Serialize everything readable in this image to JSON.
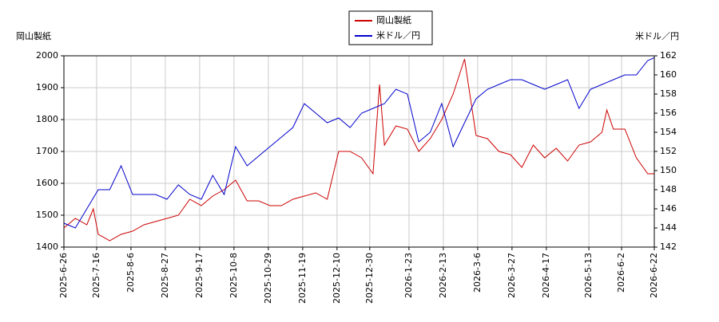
{
  "chart_data": {
    "type": "line",
    "ylabel": "岡山製紙",
    "y2label": "米ドル／円",
    "xlim": [
      "2025-6-26",
      "2026-6-22"
    ],
    "xticks": [
      "2025-6-26",
      "2025-7-16",
      "2025-8-6",
      "2025-8-27",
      "2025-9-17",
      "2025-10-8",
      "2025-10-29",
      "2025-11-19",
      "2025-12-10",
      "2025-12-30",
      "2026-1-23",
      "2026-2-13",
      "2026-3-6",
      "2026-3-27",
      "2026-4-17",
      "2026-5-13",
      "2026-6-2",
      "2026-6-22"
    ],
    "ylim": [
      1400,
      2000
    ],
    "yticks": [
      1400,
      1500,
      1600,
      1700,
      1800,
      1900,
      2000
    ],
    "y2lim": [
      142,
      162
    ],
    "y2ticks": [
      142,
      144,
      146,
      148,
      150,
      152,
      154,
      156,
      158,
      160,
      162
    ],
    "grid": true,
    "legend": "top",
    "series": [
      {
        "name": "岡山製紙",
        "color": "#cc0000",
        "x": [
          "2025-6-26",
          "2025-7-3",
          "2025-7-10",
          "2025-7-14",
          "2025-7-17",
          "2025-7-24",
          "2025-7-31",
          "2025-8-7",
          "2025-8-14",
          "2025-8-21",
          "2025-8-28",
          "2025-9-4",
          "2025-9-11",
          "2025-9-18",
          "2025-9-25",
          "2025-10-2",
          "2025-10-9",
          "2025-10-16",
          "2025-10-23",
          "2025-10-30",
          "2025-11-6",
          "2025-11-13",
          "2025-11-20",
          "2025-11-27",
          "2025-12-4",
          "2025-12-11",
          "2025-12-18",
          "2025-12-25",
          "2026-1-1",
          "2026-1-5",
          "2026-1-8",
          "2026-1-15",
          "2026-1-22",
          "2026-1-29",
          "2026-2-5",
          "2026-2-12",
          "2026-2-19",
          "2026-2-26",
          "2026-3-5",
          "2026-3-12",
          "2026-3-19",
          "2026-3-26",
          "2026-4-2",
          "2026-4-9",
          "2026-4-16",
          "2026-4-23",
          "2026-4-30",
          "2026-5-7",
          "2026-5-14",
          "2026-5-21",
          "2026-5-24",
          "2026-5-28",
          "2026-6-4",
          "2026-6-11",
          "2026-6-18",
          "2026-6-22"
        ],
        "values": [
          1460,
          1490,
          1470,
          1520,
          1440,
          1420,
          1440,
          1450,
          1470,
          1480,
          1490,
          1500,
          1550,
          1530,
          1560,
          1580,
          1610,
          1545,
          1545,
          1530,
          1530,
          1550,
          1560,
          1570,
          1550,
          1700,
          1700,
          1680,
          1630,
          1910,
          1720,
          1780,
          1770,
          1700,
          1740,
          1800,
          1880,
          1990,
          1750,
          1740,
          1700,
          1690,
          1650,
          1720,
          1680,
          1710,
          1670,
          1720,
          1730,
          1760,
          1830,
          1770,
          1770,
          1680,
          1630,
          1630
        ]
      },
      {
        "name": "米ドル／円",
        "color": "#0000cc",
        "axis": "y2",
        "x": [
          "2025-6-26",
          "2025-7-3",
          "2025-7-10",
          "2025-7-17",
          "2025-7-24",
          "2025-7-31",
          "2025-8-7",
          "2025-8-14",
          "2025-8-21",
          "2025-8-28",
          "2025-9-4",
          "2025-9-11",
          "2025-9-18",
          "2025-9-25",
          "2025-10-2",
          "2025-10-9",
          "2025-10-16",
          "2025-10-23",
          "2025-10-30",
          "2025-11-6",
          "2025-11-13",
          "2025-11-20",
          "2025-11-27",
          "2025-12-4",
          "2025-12-11",
          "2025-12-18",
          "2025-12-25",
          "2026-1-1",
          "2026-1-8",
          "2026-1-15",
          "2026-1-22",
          "2026-1-29",
          "2026-2-5",
          "2026-2-12",
          "2026-2-19",
          "2026-2-26",
          "2026-3-5",
          "2026-3-12",
          "2026-3-19",
          "2026-3-26",
          "2026-4-2",
          "2026-4-9",
          "2026-4-16",
          "2026-4-23",
          "2026-4-30",
          "2026-5-7",
          "2026-5-14",
          "2026-5-21",
          "2026-5-28",
          "2026-6-4",
          "2026-6-11",
          "2026-6-18",
          "2026-6-22"
        ],
        "values": [
          144.5,
          144,
          146,
          148,
          148,
          150.5,
          147.5,
          147.5,
          147.5,
          147,
          148.5,
          147.5,
          147,
          149.5,
          147.5,
          152.5,
          150.5,
          151.5,
          152.5,
          153.5,
          154.5,
          157,
          156,
          155,
          155.5,
          154.5,
          156,
          156.5,
          157,
          158.5,
          158,
          153,
          154,
          157,
          152.5,
          155,
          157.5,
          158.5,
          159,
          159.5,
          159.5,
          159,
          158.5,
          159,
          159.5,
          156.5,
          158.5,
          159,
          159.5,
          160,
          160,
          161.5,
          161.8
        ]
      }
    ]
  }
}
